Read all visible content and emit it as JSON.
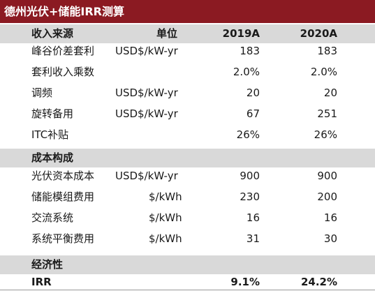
{
  "table": {
    "title": "德州光伏+储能IRR测算",
    "header": {
      "name": "收入来源",
      "unit": "单位",
      "y1": "2019A",
      "y2": "2020A"
    },
    "revenue_rows": [
      {
        "name": "峰谷价差套利",
        "unit": "USD$/kW-yr",
        "y1": "183",
        "y2": "183"
      },
      {
        "name": "套利收入乘数",
        "unit": "",
        "y1": "2.0%",
        "y2": "2.0%"
      },
      {
        "name": "调频",
        "unit": "USD$/kW-yr",
        "y1": "20",
        "y2": "20"
      },
      {
        "name": "旋转备用",
        "unit": "USD$/kW-yr",
        "y1": "67",
        "y2": "251"
      },
      {
        "name": "ITC补贴",
        "unit": "",
        "y1": "26%",
        "y2": "26%"
      }
    ],
    "cost_section": "成本构成",
    "cost_rows": [
      {
        "name": "光伏资本成本",
        "unit": "USD$/kW-yr",
        "y1": "900",
        "y2": "900"
      },
      {
        "name": "储能模组费用",
        "unit": "$/kWh",
        "y1": "230",
        "y2": "200"
      },
      {
        "name": "交流系统",
        "unit": "$/kWh",
        "y1": "16",
        "y2": "16"
      },
      {
        "name": "系统平衡费用",
        "unit": "$/kWh",
        "y1": "31",
        "y2": "30"
      }
    ],
    "econ_section": "经济性",
    "irr_row": {
      "name": "IRR",
      "y1": "9.1%",
      "y2": "24.2%"
    }
  }
}
